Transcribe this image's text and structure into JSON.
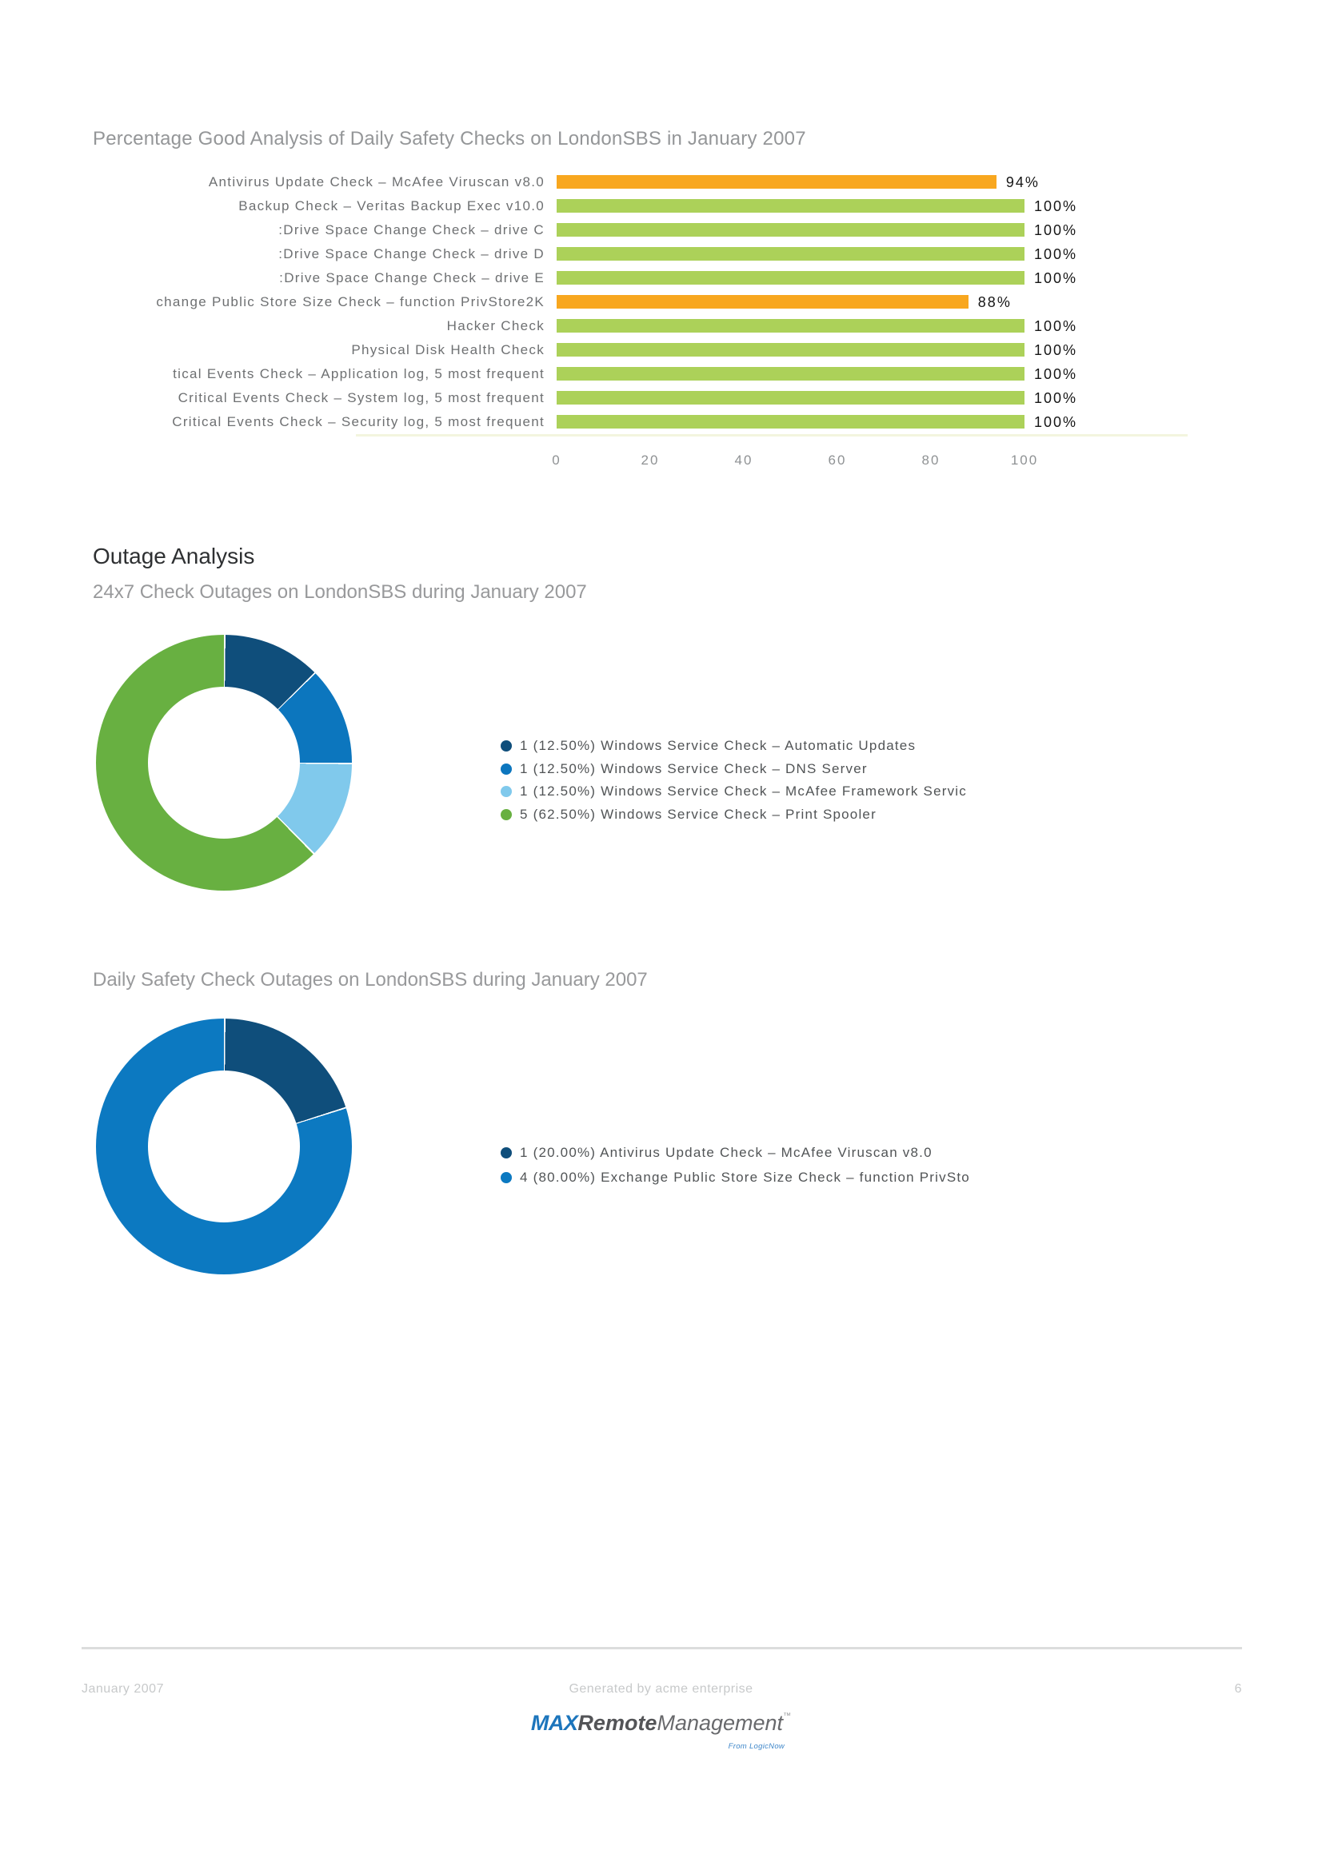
{
  "sections": {
    "outage_heading": "Outage Analysis"
  },
  "footer": {
    "left": "January 2007",
    "center": "Generated by acme enterprise",
    "page_number": "6",
    "logo": {
      "max": "MAX",
      "remote": "Remote",
      "management": "Management",
      "tm": "™",
      "tagline": "From LogicNow"
    }
  },
  "palette": {
    "bar_green": "#acd159",
    "bar_orange": "#f8a71f",
    "donut_navy": "#0f4e7b",
    "donut_blue": "#0c76be",
    "donut_light_blue": "#80c9ec",
    "donut_green": "#68b041",
    "title_gray": "#98999b",
    "heading_dark": "#2e3032"
  },
  "chart_data": [
    {
      "type": "bar",
      "orientation": "horizontal",
      "title": "Percentage Good Analysis of Daily Safety Checks on LondonSBS in January 2007",
      "categories": [
        "Antivirus Update Check – McAfee Viruscan v8.0",
        "Backup Check – Veritas Backup Exec v10.0",
        "Drive Space Change Check – drive C:",
        "Drive Space Change Check – drive D:",
        "Drive Space Change Check – drive E:",
        "change Public Store Size Check – function PrivStore2K",
        "Hacker Check",
        "Physical Disk Health Check",
        "tical Events Check – Application log, 5 most frequent",
        "Critical Events Check – System log, 5 most frequent",
        "Critical Events Check – Security log, 5 most frequent"
      ],
      "values": [
        94,
        100,
        100,
        100,
        100,
        88,
        100,
        100,
        100,
        100,
        100
      ],
      "value_labels": [
        "94%",
        "100%",
        "100%",
        "100%",
        "100%",
        "88%",
        "100%",
        "100%",
        "100%",
        "100%",
        "100%"
      ],
      "bar_colors": [
        "#f8a71f",
        "#acd159",
        "#acd159",
        "#acd159",
        "#acd159",
        "#f8a71f",
        "#acd159",
        "#acd159",
        "#acd159",
        "#acd159",
        "#acd159"
      ],
      "xlim": [
        0,
        100
      ],
      "x_ticks": [
        0,
        20,
        40,
        60,
        80,
        100
      ],
      "grid": false,
      "legend_position": "none"
    },
    {
      "type": "pie",
      "subtype": "donut",
      "title": "24x7 Check Outages on LondonSBS during January 2007",
      "legend_position": "right",
      "slices": [
        {
          "count": 1,
          "percent": 12.5,
          "label": "1 (12.50%) Windows Service Check – Automatic Updates",
          "color": "#0f4e7b"
        },
        {
          "count": 1,
          "percent": 12.5,
          "label": "1 (12.50%) Windows Service Check – DNS Server",
          "color": "#0c76be"
        },
        {
          "count": 1,
          "percent": 12.5,
          "label": "1 (12.50%) Windows Service Check – McAfee Framework Servic",
          "color": "#80c9ec"
        },
        {
          "count": 5,
          "percent": 62.5,
          "label": "5 (62.50%) Windows Service Check – Print Spooler",
          "color": "#68b041"
        }
      ]
    },
    {
      "type": "pie",
      "subtype": "donut",
      "title": "Daily Safety Check Outages on LondonSBS during January 2007",
      "legend_position": "right",
      "slices": [
        {
          "count": 1,
          "percent": 20.0,
          "label": "1 (20.00%) Antivirus Update Check – McAfee Viruscan v8.0",
          "color": "#0f4e7b"
        },
        {
          "count": 4,
          "percent": 80.0,
          "label": "4 (80.00%) Exchange Public Store Size Check – function PrivSto",
          "color": "#0c79c1"
        }
      ]
    }
  ]
}
